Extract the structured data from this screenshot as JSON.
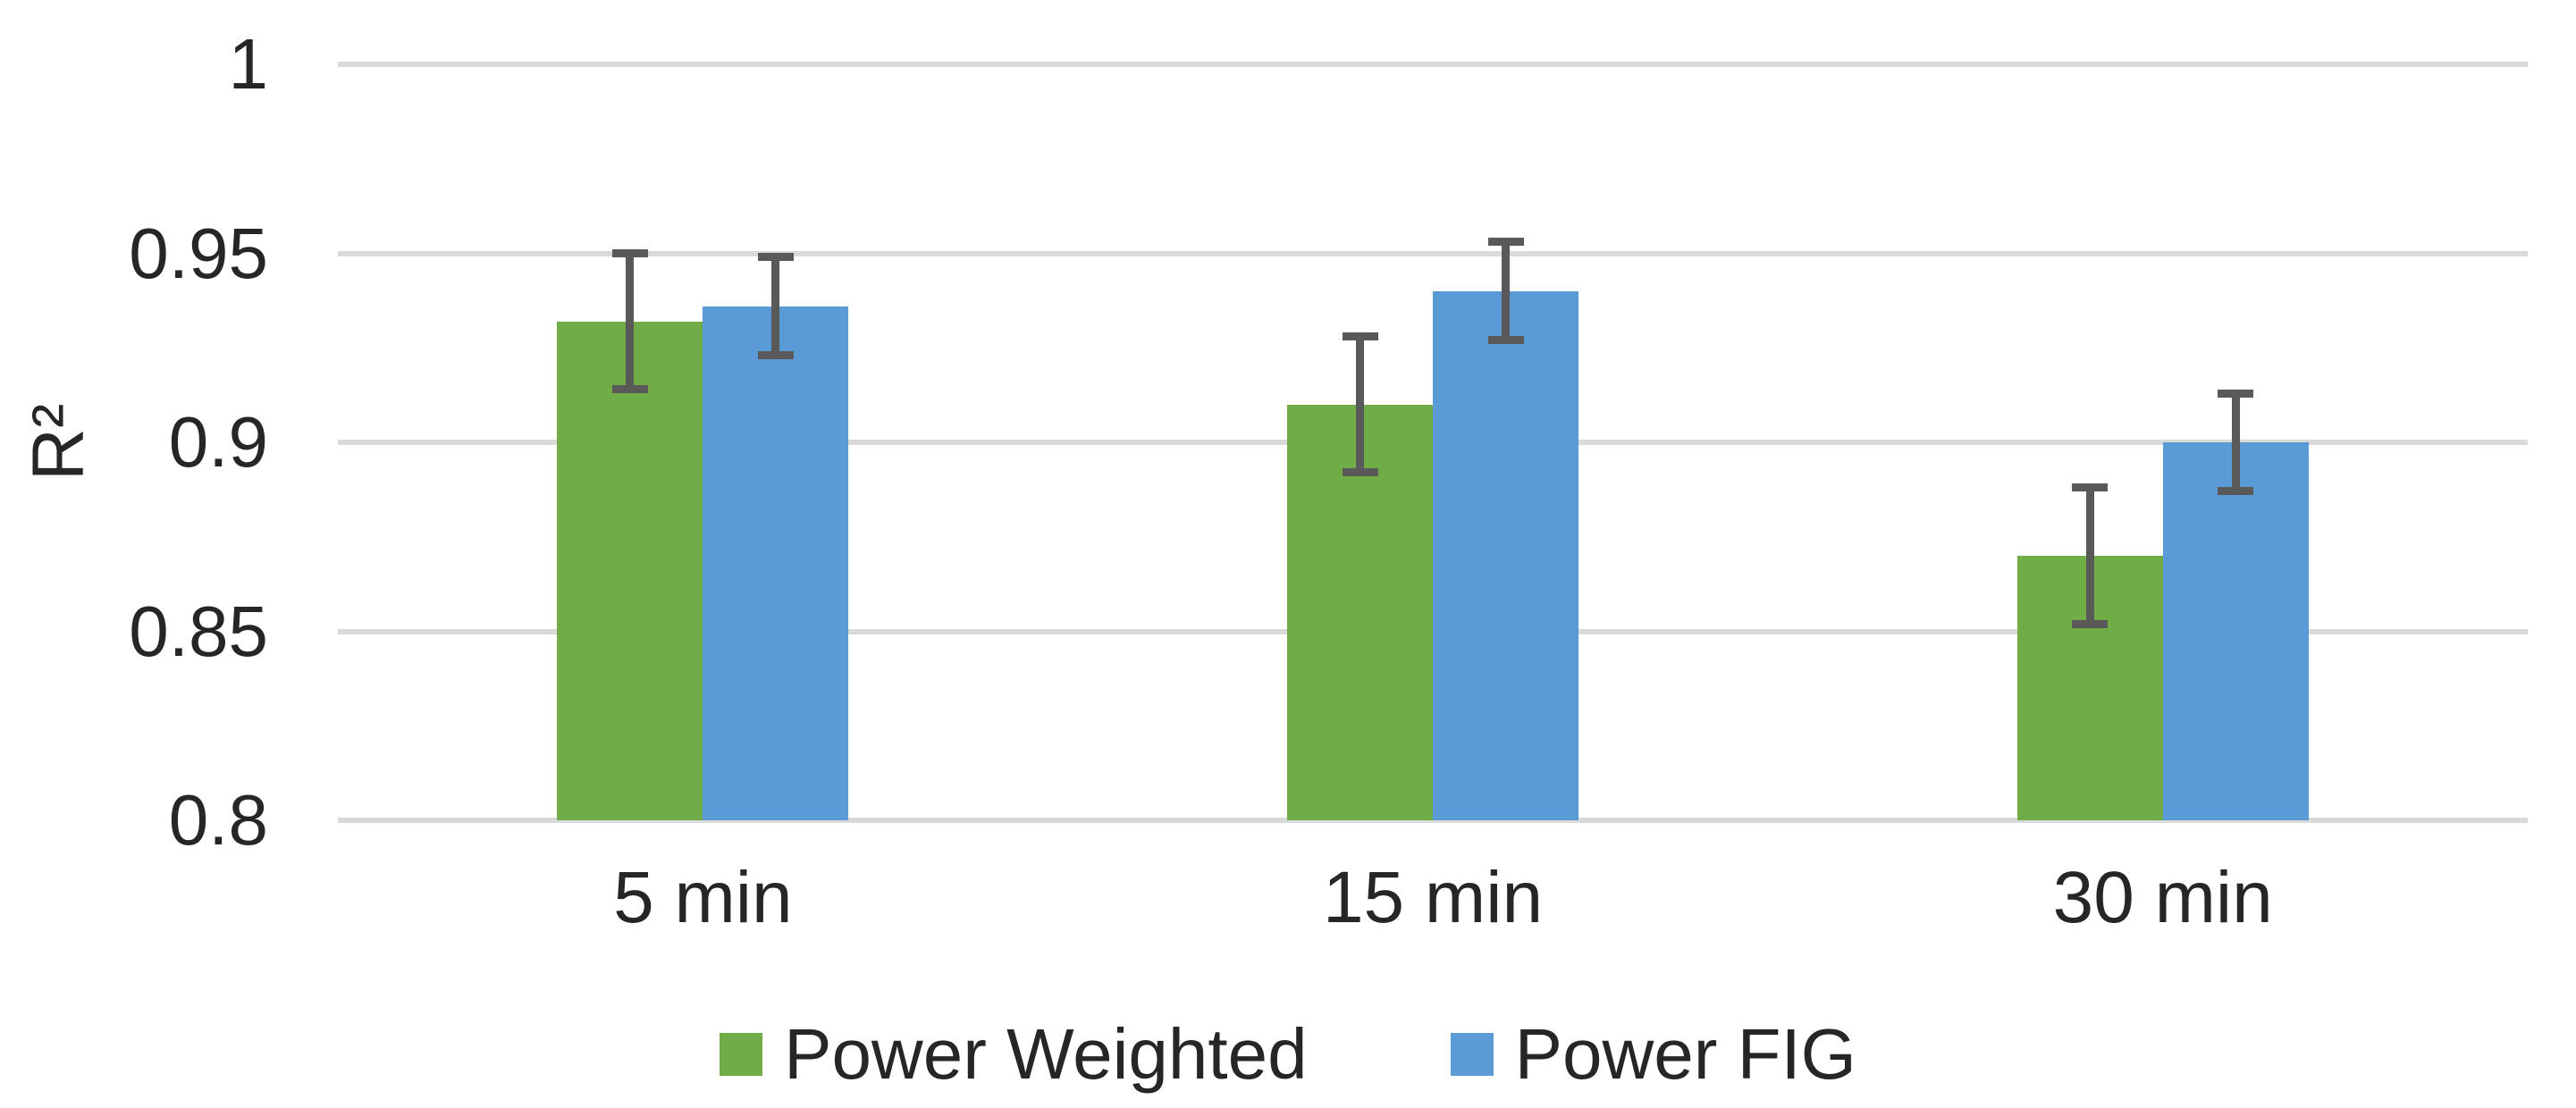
{
  "chart_data": {
    "type": "bar",
    "title": "",
    "xlabel": "",
    "ylabel": "R²",
    "categories": [
      "5 min",
      "15 min",
      "30 min"
    ],
    "series": [
      {
        "name": "Power Weighted",
        "color": "#70AD47",
        "values": [
          0.932,
          0.91,
          0.87
        ],
        "errors": [
          0.018,
          0.018,
          0.018
        ]
      },
      {
        "name": "Power FIG",
        "color": "#5B9BD5",
        "values": [
          0.936,
          0.94,
          0.9
        ],
        "errors": [
          0.013,
          0.013,
          0.013
        ]
      }
    ],
    "ylim": [
      0.8,
      1.0
    ],
    "ytick_values": [
      1,
      0.95,
      0.9,
      0.85,
      0.8
    ],
    "ytick_labels": [
      "1",
      "0.95",
      "0.9",
      "0.85",
      "0.8"
    ],
    "grid": "horizontal gridlines on",
    "gridline_color": "#D9D9D9",
    "error_bar_color": "#595959",
    "text_color": "#262626",
    "legend_position": "bottom"
  }
}
